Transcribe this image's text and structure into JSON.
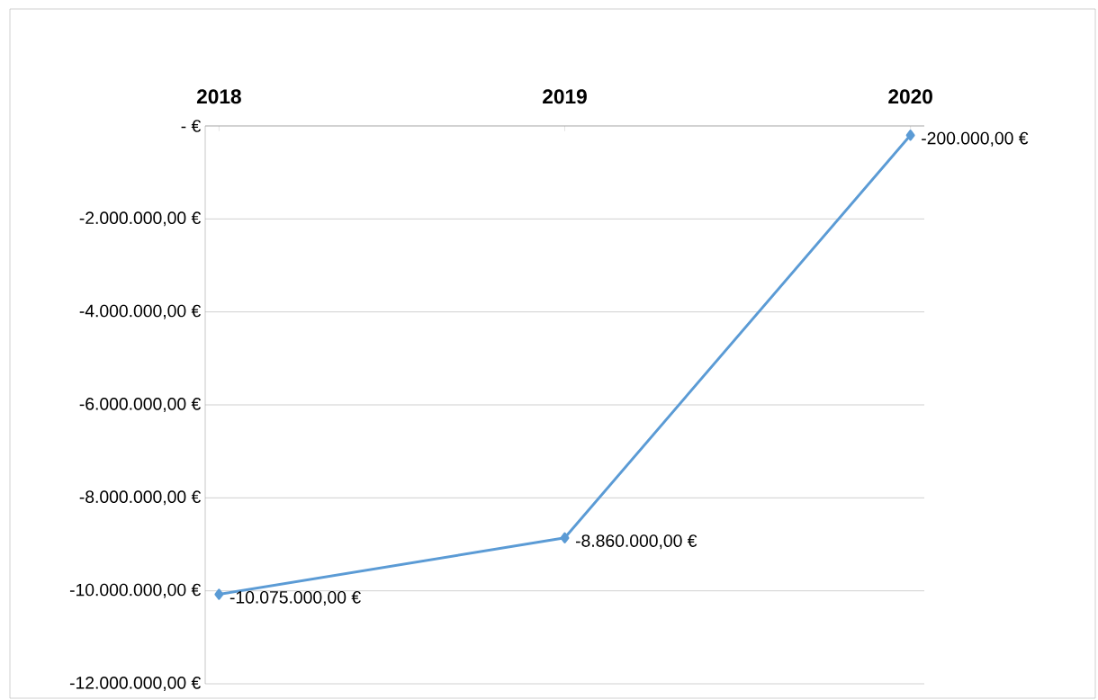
{
  "chart_data": {
    "type": "line",
    "categories": [
      "2018",
      "2019",
      "2020"
    ],
    "series": [
      {
        "color": "#5b9bd5",
        "values": [
          -10075000,
          -8860000,
          -200000
        ],
        "value_labels": [
          "-10.075.000,00 €",
          "-8.860.000,00 €",
          "-200.000,00 €"
        ]
      }
    ],
    "ylim": [
      -12000000,
      0
    ],
    "yticks": [
      {
        "value": 0,
        "label": "-  €"
      },
      {
        "value": -2000000,
        "label": "-2.000.000,00 €"
      },
      {
        "value": -4000000,
        "label": "-4.000.000,00 €"
      },
      {
        "value": -6000000,
        "label": "-6.000.000,00 €"
      },
      {
        "value": -8000000,
        "label": "-8.000.000,00 €"
      },
      {
        "value": -10000000,
        "label": "-10.000.000,00 €"
      },
      {
        "value": -12000000,
        "label": "-12.000.000,00 €"
      }
    ],
    "grid": "y",
    "marker": "diamond",
    "line_style": "solid"
  }
}
